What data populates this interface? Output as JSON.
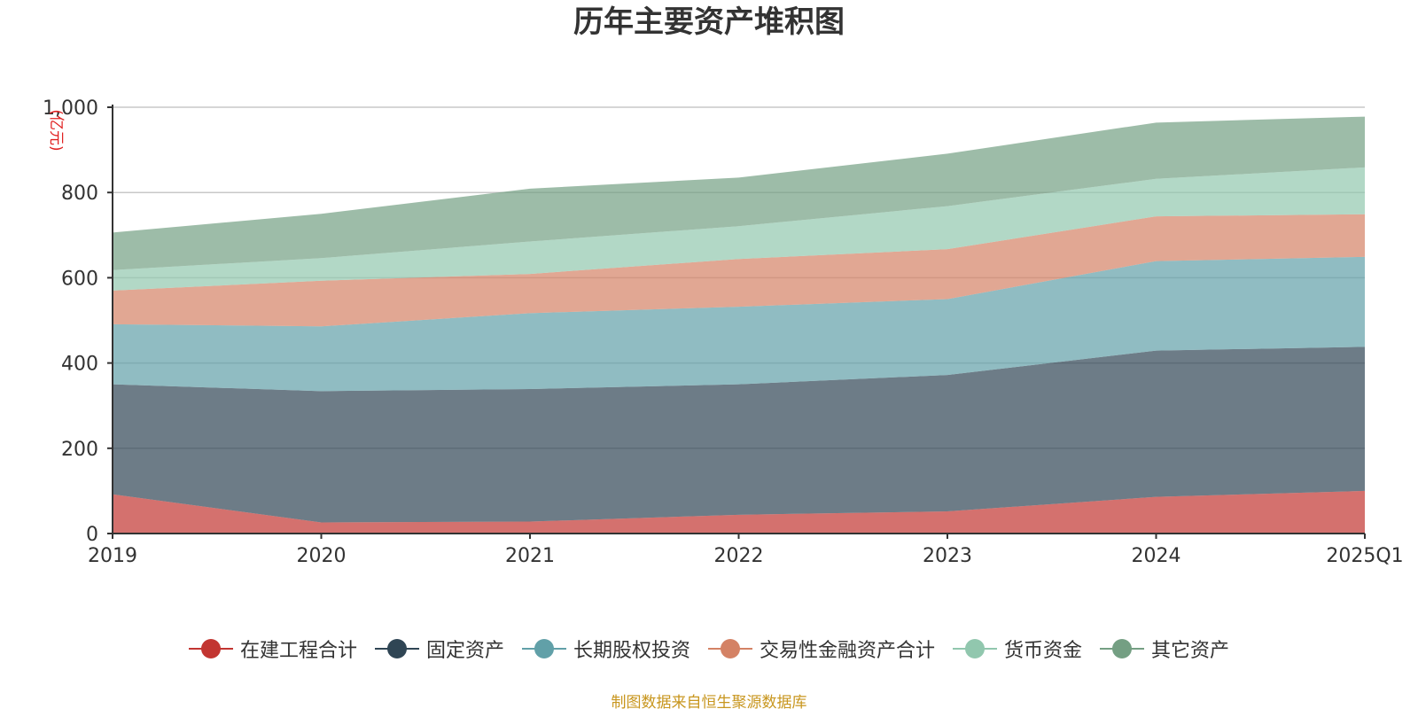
{
  "chart_data": {
    "type": "area",
    "stacked": true,
    "title": "历年主要资产堆积图",
    "ylabel": "(亿元)",
    "xlabel": "",
    "categories": [
      "2019",
      "2020",
      "2021",
      "2022",
      "2023",
      "2024",
      "2025Q1"
    ],
    "ylim": [
      0,
      1000
    ],
    "yticks": [
      0,
      200,
      400,
      600,
      800,
      1000
    ],
    "ytick_labels": [
      "0",
      "200",
      "400",
      "600",
      "800",
      "1,000"
    ],
    "grid": true,
    "legend_position": "bottom",
    "series": [
      {
        "name": "在建工程合计",
        "color": "#c23531",
        "values": [
          92,
          26,
          28,
          44,
          52,
          86,
          100
        ]
      },
      {
        "name": "固定资产",
        "color": "#2f4554",
        "values": [
          258,
          308,
          311,
          306,
          320,
          343,
          338
        ]
      },
      {
        "name": "长期股权投资",
        "color": "#61a0a8",
        "values": [
          141,
          152,
          178,
          182,
          178,
          210,
          211
        ]
      },
      {
        "name": "交易性金融资产合计",
        "color": "#d48265",
        "values": [
          79,
          107,
          92,
          112,
          117,
          105,
          100
        ]
      },
      {
        "name": "货币资金",
        "color": "#91c7ae",
        "values": [
          48,
          53,
          76,
          77,
          101,
          88,
          110
        ]
      },
      {
        "name": "其它资产",
        "color": "#749f83",
        "values": [
          88,
          104,
          124,
          114,
          123,
          132,
          119
        ]
      }
    ]
  },
  "footer": "制图数据来自恒生聚源数据库"
}
